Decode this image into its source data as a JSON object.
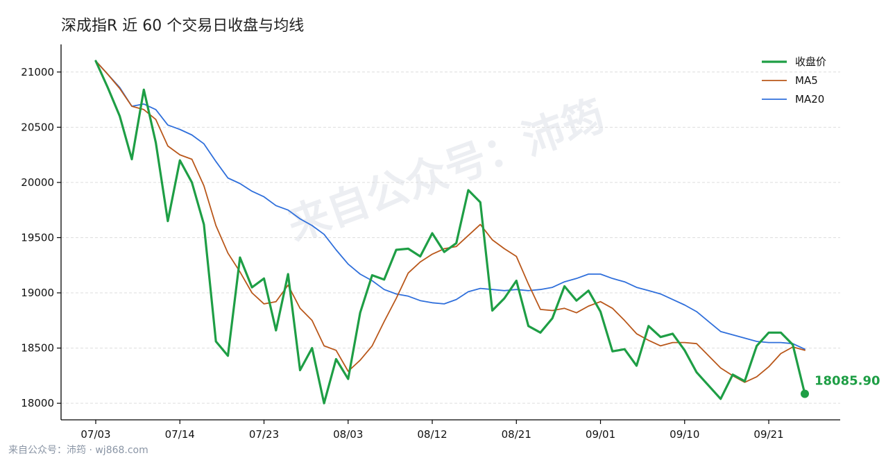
{
  "chart_data": {
    "type": "line",
    "title": "深成指R 近 60 个交易日收盘与均线",
    "x_tick_labels": [
      "07/03",
      "07/14",
      "07/23",
      "08/03",
      "08/12",
      "08/21",
      "09/01",
      "09/10",
      "09/21"
    ],
    "ylim": [
      17850,
      21250
    ],
    "yticks": [
      18000,
      18500,
      19000,
      19500,
      20000,
      20500,
      21000
    ],
    "grid": "y-dashed",
    "legend_position": "top-right",
    "series": [
      {
        "name": "收盘价",
        "color": "#1e9e45",
        "values": [
          21100,
          20860,
          20600,
          20210,
          20840,
          20360,
          19650,
          20200,
          20000,
          19620,
          18560,
          18430,
          19320,
          19050,
          19130,
          18660,
          19170,
          18300,
          18500,
          18000,
          18400,
          18220,
          18820,
          19160,
          19120,
          19390,
          19400,
          19330,
          19540,
          19370,
          19450,
          19930,
          19820,
          18840,
          18950,
          19110,
          18700,
          18640,
          18770,
          19060,
          18930,
          19020,
          18830,
          18470,
          18490,
          18340,
          18700,
          18600,
          18630,
          18480,
          18280,
          18160,
          18040,
          18260,
          18200,
          18520,
          18640,
          18640,
          18530,
          18085.9
        ]
      },
      {
        "name": "MA5",
        "color": "#b9571a",
        "values": [
          21100,
          20980,
          20850,
          20690,
          20660,
          20570,
          20330,
          20250,
          20210,
          19970,
          19610,
          19360,
          19190,
          19000,
          18900,
          18920,
          19070,
          18860,
          18750,
          18520,
          18480,
          18290,
          18390,
          18520,
          18740,
          18950,
          19180,
          19280,
          19350,
          19400,
          19420,
          19520,
          19620,
          19480,
          19400,
          19330,
          19080,
          18850,
          18840,
          18860,
          18820,
          18880,
          18920,
          18860,
          18750,
          18630,
          18570,
          18520,
          18550,
          18550,
          18540,
          18430,
          18320,
          18250,
          18190,
          18240,
          18330,
          18450,
          18510,
          18480
        ]
      },
      {
        "name": "MA20",
        "color": "#2f6fdb",
        "values": [
          21100,
          20980,
          20860,
          20690,
          20710,
          20660,
          20520,
          20480,
          20430,
          20350,
          20190,
          20040,
          19990,
          19920,
          19870,
          19790,
          19750,
          19670,
          19610,
          19530,
          19390,
          19260,
          19170,
          19110,
          19030,
          18990,
          18970,
          18930,
          18910,
          18900,
          18940,
          19010,
          19040,
          19030,
          19020,
          19030,
          19020,
          19030,
          19050,
          19100,
          19130,
          19170,
          19170,
          19130,
          19100,
          19050,
          19020,
          18990,
          18940,
          18890,
          18830,
          18740,
          18650,
          18620,
          18590,
          18560,
          18550,
          18550,
          18540,
          18490
        ]
      }
    ],
    "end_label": "18085.90"
  },
  "watermark": "来自公众号：沛筠",
  "footer": "来自公众号：沛筠 · wj868.com"
}
